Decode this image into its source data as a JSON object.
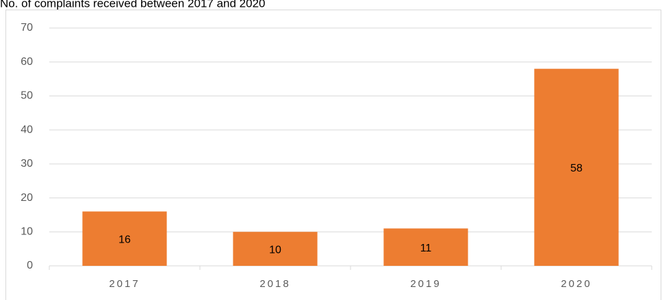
{
  "chart_data": {
    "type": "bar",
    "title": "No. of complaints received between 2017 and 2020",
    "categories": [
      "2017",
      "2018",
      "2019",
      "2020"
    ],
    "values": [
      16,
      10,
      11,
      58
    ],
    "color": "#ED7D31",
    "ylim": [
      0,
      70
    ],
    "yticks": [
      0,
      10,
      20,
      30,
      40,
      50,
      60,
      70
    ],
    "grid": true
  }
}
